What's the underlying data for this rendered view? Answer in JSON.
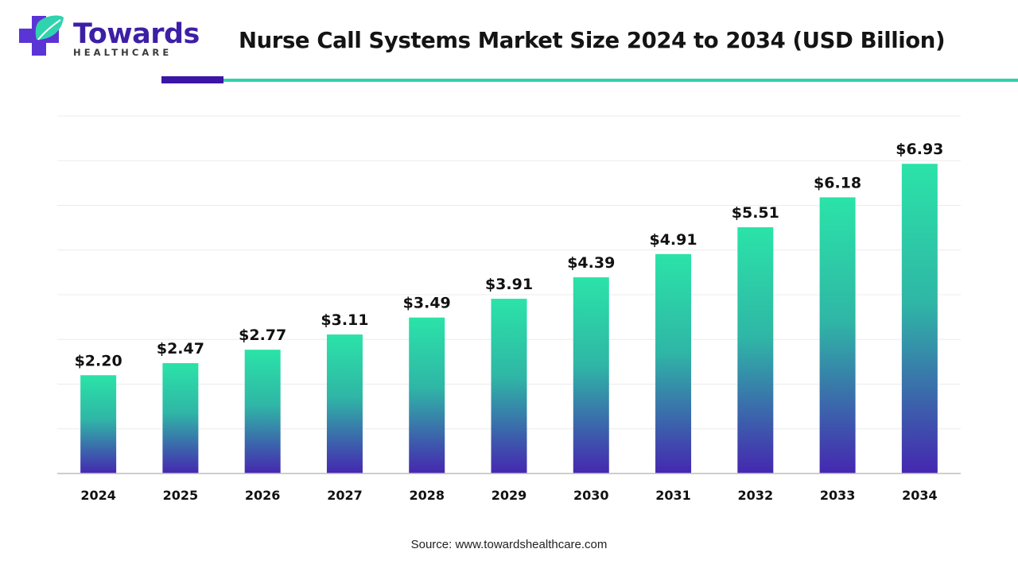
{
  "logo": {
    "word": "Towards",
    "sub": "HEALTHCARE",
    "colors": {
      "violet": "#4a25b8",
      "teal": "#2fd3ad",
      "cross": "#5b34d6"
    }
  },
  "source": "Source: www.towardshealthcare.com",
  "chart_data": {
    "type": "bar",
    "title": "Nurse Call Systems Market Size 2024 to 2034 (USD Billion)",
    "categories": [
      "2024",
      "2025",
      "2026",
      "2027",
      "2028",
      "2029",
      "2030",
      "2031",
      "2032",
      "2033",
      "2034"
    ],
    "values": [
      2.2,
      2.47,
      2.77,
      3.11,
      3.49,
      3.91,
      4.39,
      4.91,
      5.51,
      6.18,
      6.93
    ],
    "data_labels": [
      "$2.20",
      "$2.47",
      "$2.77",
      "$3.11",
      "$3.49",
      "$3.91",
      "$4.39",
      "$4.91",
      "$5.51",
      "$6.18",
      "$6.93"
    ],
    "ylim": [
      0,
      8
    ],
    "grid": true,
    "legend": "none",
    "bar_gradient": {
      "top": "#2be3a8",
      "bottom": "#4527b0"
    }
  }
}
